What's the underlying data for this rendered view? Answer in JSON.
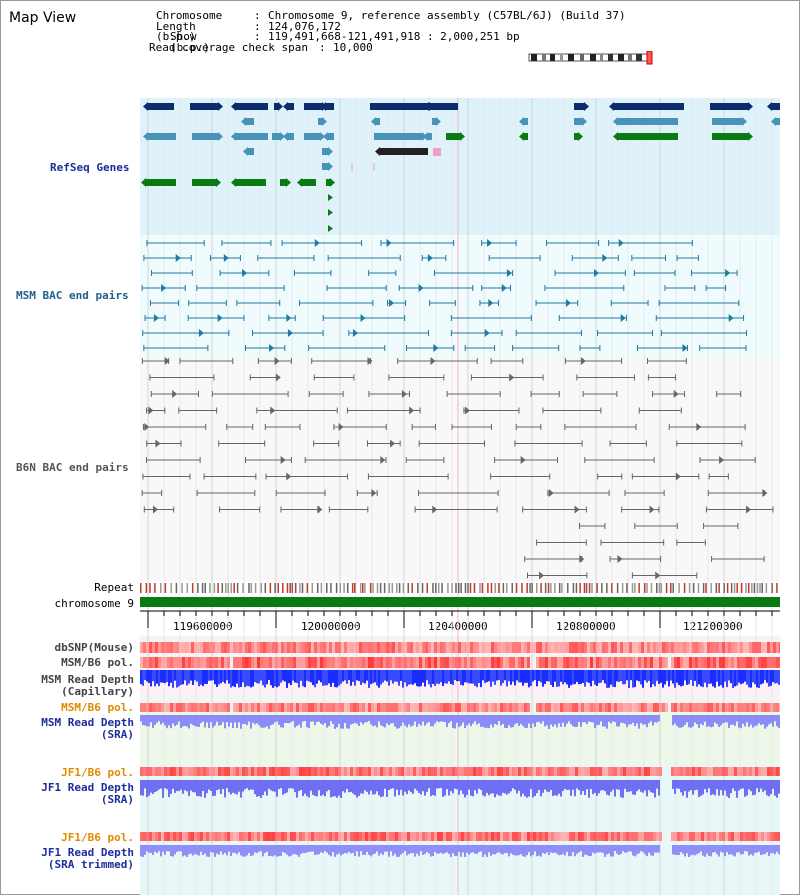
{
  "page": {
    "title": "Map View"
  },
  "header": {
    "chromosome_label": "Chromosome",
    "chromosome_value": "Chromosome 9, reference assembly (C57BL/6J) (Build 37)",
    "length_label": "Length (b.p.)",
    "length_value": "124,076,172",
    "show_label": "Show (b.p.)",
    "show_value": "119,491,668-121,491,918 : 2,000,251 bp",
    "coverage_label": "Read coverage check span",
    "coverage_value": "10,000"
  },
  "tracks": {
    "refseq": "RefSeq Genes",
    "msm_bac": "MSM BAC end pairs",
    "b6n_bac": "B6N BAC end pairs",
    "repeat": "Repeat",
    "chromosome": "chromosome 9",
    "dbsnp": "dbSNP(Mouse)",
    "msm_b6_pol": "MSM/B6 pol.",
    "msm_read_depth_cap_1": "MSM Read Depth",
    "msm_read_depth_cap_2": "(Capillary)",
    "msm_b6_pol_2": "MSM/B6 pol.",
    "msm_read_depth_sra_1": "MSM Read Depth",
    "msm_read_depth_sra_2": "(SRA)",
    "jf1_b6_pol": "JF1/B6 pol.",
    "jf1_read_depth_sra_1": "JF1 Read Depth",
    "jf1_read_depth_sra_2": "(SRA)",
    "jf1_b6_pol_2": "JF1/B6 pol.",
    "jf1_read_depth_trim_1": "JF1 Read Depth",
    "jf1_read_depth_trim_2": "(SRA trimmed)"
  },
  "axis": {
    "ticks": [
      "119600000",
      "120000000",
      "120400000",
      "120800000",
      "121200000"
    ]
  },
  "colors": {
    "refseq_bg": "#dff2fa",
    "msm_bg": "#effbfd",
    "navy": "#0b2d6b",
    "steel": "#4a93b8",
    "green": "#0a7a12",
    "teal_label": "#1f5f8a",
    "navy_label": "#1d2e9a",
    "orange_label": "#e08a00",
    "gray_label": "#555555",
    "chromosome_bar": "#0a7a12"
  }
}
